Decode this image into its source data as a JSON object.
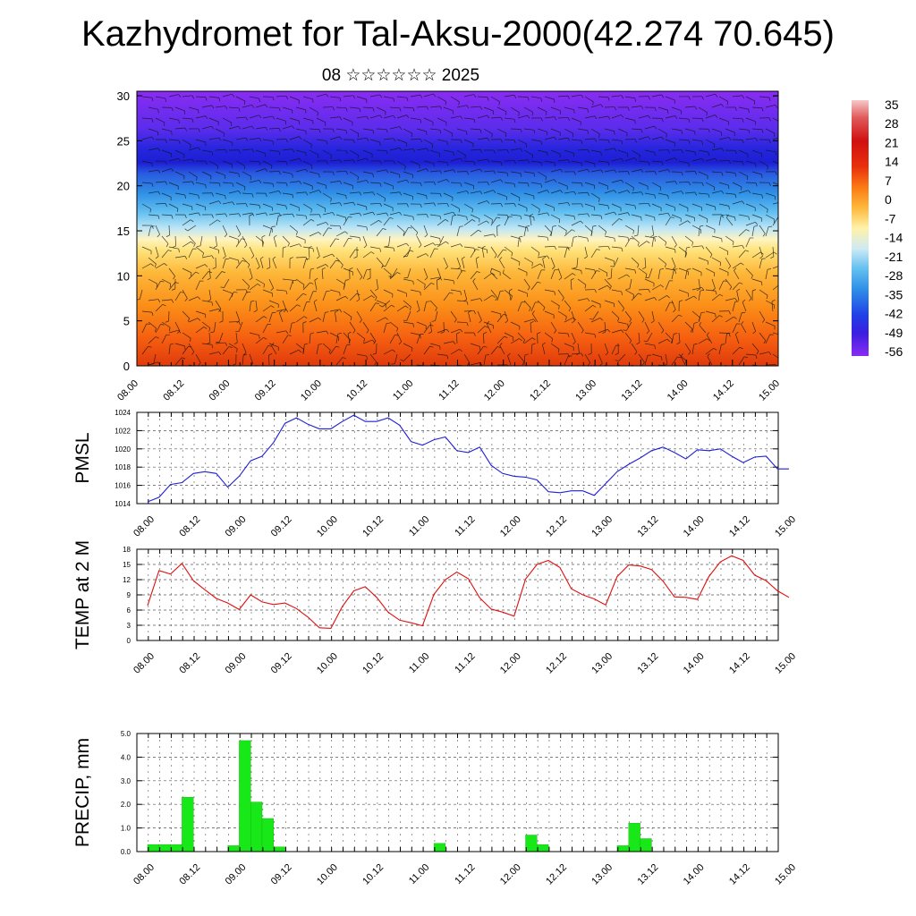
{
  "title": "Kazhydromet for Tal-Aksu-2000(42.274 70.645)",
  "subtitle": "08 ☆☆☆☆☆☆ 2025",
  "colors": {
    "pmsl_line": "#1f1fd6",
    "temp_line": "#e01010",
    "precip_bar": "#18e818",
    "precip_bar_edge": "#10b010"
  },
  "chart_data": [
    {
      "type": "heatmap",
      "name": "upper-air-section",
      "y_ticks": [
        "0",
        "5",
        "10",
        "15",
        "20",
        "25",
        "30"
      ],
      "y_tick_values": [
        0,
        5,
        10,
        15,
        20,
        25,
        30
      ],
      "ylim": [
        0,
        30.5
      ],
      "x_ticks": [
        "08.00",
        "08.12",
        "09.00",
        "09.12",
        "10.00",
        "10.12",
        "11.00",
        "11.12",
        "12.00",
        "12.12",
        "13.00",
        "13.12",
        "14.00",
        "14.12",
        "15.00"
      ],
      "colorbar_labels": [
        "35",
        "28",
        "21",
        "14",
        "7",
        "0",
        "-7",
        "-14",
        "-21",
        "-28",
        "-35",
        "-42",
        "-49",
        "-56"
      ],
      "colorbar_range": [
        -63,
        40
      ],
      "overlay": "wind barbs"
    },
    {
      "type": "line",
      "name": "pmsl",
      "ylabel": "PMSL",
      "y_ticks": [
        "1014",
        "1016",
        "1018",
        "1020",
        "1022",
        "1024"
      ],
      "y_tick_values": [
        1014,
        1016,
        1018,
        1020,
        1022,
        1024
      ],
      "ylim": [
        1014,
        1024
      ],
      "x_ticks": [
        "08.00",
        "08.12",
        "09.00",
        "09.12",
        "10.00",
        "10.12",
        "11.00",
        "11.12",
        "12.00",
        "12.12",
        "13.00",
        "13.12",
        "14.00",
        "14.12",
        "15.00"
      ],
      "x_hours": [
        0,
        3,
        6,
        9,
        12,
        15,
        18,
        21,
        24,
        27,
        30,
        33,
        36,
        39,
        42,
        45,
        48,
        51,
        54,
        57,
        60,
        63,
        66,
        69,
        72,
        75,
        78,
        81,
        84,
        87,
        90,
        93,
        96,
        99,
        102,
        105,
        108,
        111,
        114,
        117,
        120,
        123,
        126,
        129,
        132,
        135,
        138,
        141,
        144,
        147,
        150,
        153,
        156,
        159,
        162,
        165,
        168
      ],
      "values": [
        1014.2,
        1014.7,
        1016.1,
        1016.3,
        1017.3,
        1017.5,
        1017.3,
        1015.8,
        1017.0,
        1018.7,
        1019.2,
        1020.7,
        1022.8,
        1023.4,
        1022.7,
        1022.2,
        1022.2,
        1023.0,
        1023.7,
        1023.0,
        1023.0,
        1023.4,
        1022.6,
        1020.8,
        1020.4,
        1021.0,
        1021.3,
        1019.8,
        1019.6,
        1020.2,
        1018.2,
        1017.3,
        1017.0,
        1016.9,
        1016.6,
        1015.3,
        1015.2,
        1015.4,
        1015.4,
        1014.9,
        1016.2,
        1017.5,
        1018.3,
        1019.0,
        1019.8,
        1020.2,
        1019.6,
        1018.9,
        1019.9,
        1019.8,
        1020.0,
        1019.2,
        1018.5,
        1019.1,
        1019.2,
        1017.8,
        1017.8
      ]
    },
    {
      "type": "line",
      "name": "temp-2m",
      "ylabel": "TEMP at 2 M",
      "y_ticks": [
        "0",
        "3",
        "6",
        "9",
        "12",
        "15",
        "18"
      ],
      "y_tick_values": [
        0,
        3,
        6,
        9,
        12,
        15,
        18
      ],
      "ylim": [
        0,
        18
      ],
      "x_ticks": [
        "08.00",
        "08.12",
        "09.00",
        "09.12",
        "10.00",
        "10.12",
        "11.00",
        "11.12",
        "12.00",
        "12.12",
        "13.00",
        "13.12",
        "14.00",
        "14.12",
        "15.00"
      ],
      "x_hours": [
        0,
        3,
        6,
        9,
        12,
        15,
        18,
        21,
        24,
        27,
        30,
        33,
        36,
        39,
        42,
        45,
        48,
        51,
        54,
        57,
        60,
        63,
        66,
        69,
        72,
        75,
        78,
        81,
        84,
        87,
        90,
        93,
        96,
        99,
        102,
        105,
        108,
        111,
        114,
        117,
        120,
        123,
        126,
        129,
        132,
        135,
        138,
        141,
        144,
        147,
        150,
        153,
        156,
        159,
        162,
        165,
        168
      ],
      "values": [
        6.9,
        13.8,
        13.1,
        15.2,
        11.8,
        10.0,
        8.3,
        7.4,
        6.1,
        9.0,
        7.6,
        7.1,
        7.4,
        6.3,
        4.6,
        2.5,
        2.4,
        6.7,
        9.8,
        10.6,
        8.5,
        5.6,
        4.0,
        3.5,
        2.9,
        9.1,
        12.0,
        13.5,
        12.2,
        8.4,
        6.2,
        5.6,
        4.8,
        12.1,
        15.0,
        15.8,
        14.4,
        10.2,
        9.0,
        8.2,
        7.0,
        12.6,
        14.9,
        14.7,
        14.0,
        11.7,
        8.6,
        8.5,
        8.1,
        12.6,
        15.5,
        16.7,
        15.8,
        12.9,
        11.8,
        9.8,
        8.5
      ]
    },
    {
      "type": "bar",
      "name": "precip",
      "ylabel": "PRECIP, mm",
      "y_ticks": [
        "0.0",
        "1.0",
        "2.0",
        "3.0",
        "4.0",
        "5.0"
      ],
      "y_tick_values": [
        0,
        1,
        2,
        3,
        4,
        5
      ],
      "ylim": [
        0,
        5
      ],
      "x_ticks": [
        "08.00",
        "08.12",
        "09.00",
        "09.12",
        "10.00",
        "10.12",
        "11.00",
        "11.12",
        "12.00",
        "12.12",
        "13.00",
        "13.12",
        "14.00",
        "14.12",
        "15.00"
      ],
      "x_hours": [
        3,
        6,
        9,
        12,
        24,
        27,
        30,
        33,
        36,
        78,
        102,
        105,
        126,
        129,
        132
      ],
      "values": [
        0.3,
        0.3,
        0.3,
        2.3,
        0.25,
        4.7,
        2.1,
        1.4,
        0.2,
        0.35,
        0.7,
        0.3,
        0.25,
        1.2,
        0.55
      ]
    }
  ]
}
